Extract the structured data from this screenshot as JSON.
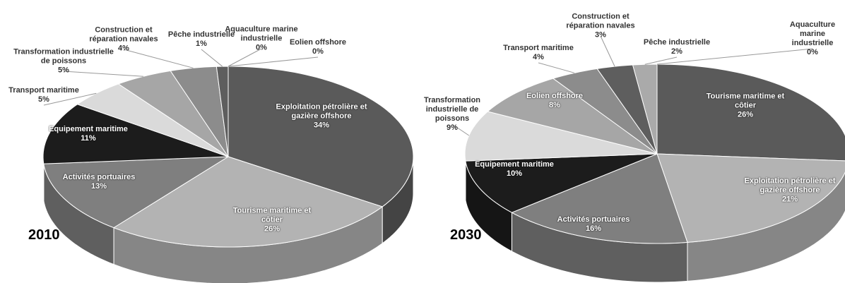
{
  "chart_data": [
    {
      "type": "pie",
      "title": "2010",
      "categories": [
        "Exploitation pétrolière et gazière offshore",
        "Tourisme maritime et côtier",
        "Activités portuaires",
        "Equipement maritime",
        "Transport maritime",
        "Transformation industrielle de poissons",
        "Construction et réparation navales",
        "Pêche industrielle",
        "Aquaculture marine industrielle",
        "Eolien offshore"
      ],
      "values": [
        34,
        26,
        13,
        11,
        5,
        5,
        4,
        1,
        0,
        0
      ],
      "value_labels": [
        "34%",
        "26%",
        "13%",
        "11%",
        "5%",
        "5%",
        "4%",
        "1%",
        "0%",
        "0%"
      ],
      "colors": [
        "#5a5a5a",
        "#b3b3b3",
        "#7f7f7f",
        "#1c1c1c",
        "#dadada",
        "#a6a6a6",
        "#8c8c8c",
        "#5e5e5e",
        "#404040",
        "#c0c0c0"
      ]
    },
    {
      "type": "pie",
      "title": "2030",
      "categories": [
        "Tourisme maritime et côtier",
        "Exploitation pétrolière et gazière offshore",
        "Activités portuaires",
        "Equipement maritime",
        "Transformation industrielle de poissons",
        "Eolien offshore",
        "Transport maritime",
        "Construction et réparation navales",
        "Pêche industrielle",
        "Aquaculture marine industrielle"
      ],
      "values": [
        26,
        21,
        16,
        10,
        9,
        8,
        4,
        3,
        2,
        0
      ],
      "value_labels": [
        "26%",
        "21%",
        "16%",
        "10%",
        "9%",
        "8%",
        "4%",
        "3%",
        "2%",
        "0%"
      ],
      "colors": [
        "#5a5a5a",
        "#b3b3b3",
        "#7f7f7f",
        "#1c1c1c",
        "#dadada",
        "#a6a6a6",
        "#8c8c8c",
        "#5e5e5e",
        "#aaaaaa",
        "#dddddd"
      ]
    }
  ]
}
